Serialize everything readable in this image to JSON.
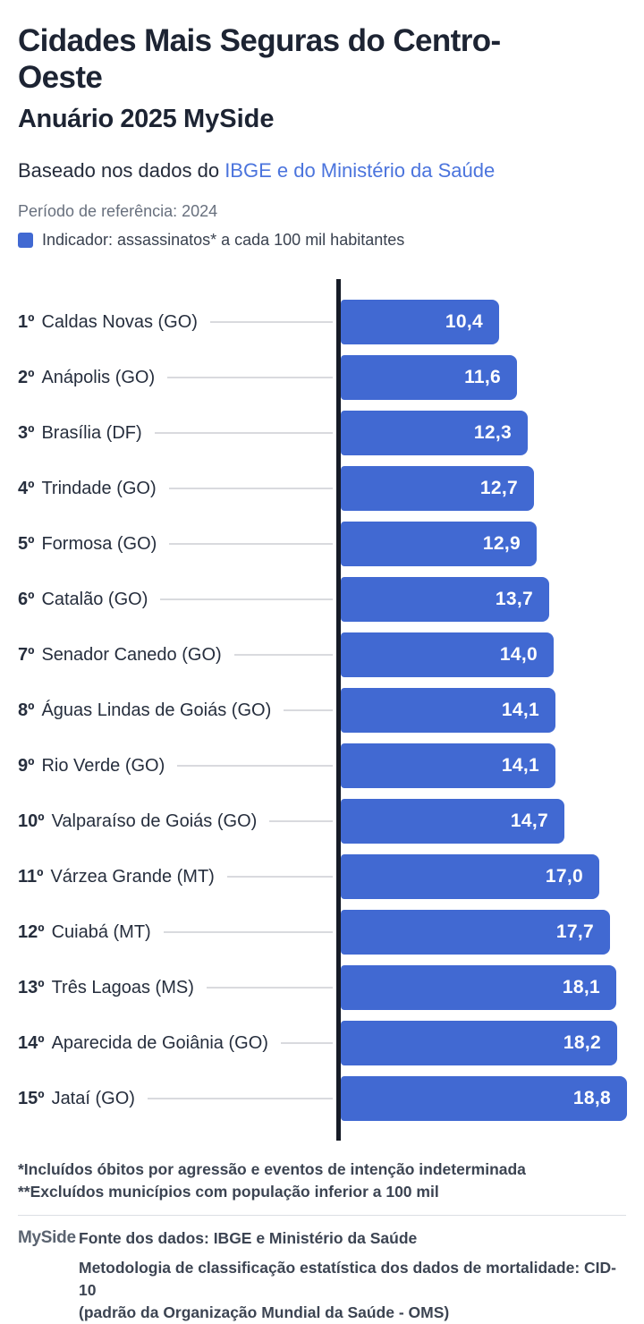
{
  "header": {
    "title": "Cidades Mais Seguras do Centro-Oeste",
    "subtitle_prefix": "Anuário 2025 ",
    "subtitle_brand": "MySide",
    "source_prefix": "Baseado nos dados do ",
    "source_link": "IBGE e do Ministério da Saúde",
    "period": "Período de referência: 2024",
    "legend_label": "Indicador: assassinatos* a cada 100 mil habitantes"
  },
  "colors": {
    "bar": "#4169d2",
    "link": "#4b74dd",
    "axis": "#161b26",
    "leader_line": "#d9dade",
    "title_text": "#1d2433"
  },
  "chart_data": {
    "type": "bar",
    "orientation": "horizontal",
    "title": "Cidades Mais Seguras do Centro-Oeste",
    "subtitle": "Anuário 2025 MySide",
    "indicator": "assassinatos* a cada 100 mil habitantes",
    "period": "2024",
    "xlim": [
      0,
      19
    ],
    "grid": false,
    "legend_position": "top",
    "categories": [
      "1º Caldas Novas (GO)",
      "2º Anápolis (GO)",
      "3º Brasília (DF)",
      "4º Trindade (GO)",
      "5º Formosa (GO)",
      "6º Catalão (GO)",
      "7º Senador Canedo (GO)",
      "8º Águas Lindas de Goiás (GO)",
      "9º Rio Verde (GO)",
      "10º Valparaíso de Goiás (GO)",
      "11º Várzea Grande (MT)",
      "12º Cuiabá (MT)",
      "13º Três Lagoas (MS)",
      "14º Aparecida de Goiânia (GO)",
      "15º Jataí (GO)"
    ],
    "values": [
      10.4,
      11.6,
      12.3,
      12.7,
      12.9,
      13.7,
      14.0,
      14.1,
      14.1,
      14.7,
      17.0,
      17.7,
      18.1,
      18.2,
      18.8
    ],
    "value_labels": [
      "10,4",
      "11,6",
      "12,3",
      "12,7",
      "12,9",
      "13,7",
      "14,0",
      "14,1",
      "14,1",
      "14,7",
      "17,0",
      "17,7",
      "18,1",
      "18,2",
      "18,8"
    ],
    "rows": [
      {
        "rank": "1º",
        "city": "Caldas Novas (GO)",
        "value": 10.4,
        "label": "10,4"
      },
      {
        "rank": "2º",
        "city": "Anápolis (GO)",
        "value": 11.6,
        "label": "11,6"
      },
      {
        "rank": "3º",
        "city": "Brasília (DF)",
        "value": 12.3,
        "label": "12,3"
      },
      {
        "rank": "4º",
        "city": "Trindade (GO)",
        "value": 12.7,
        "label": "12,7"
      },
      {
        "rank": "5º",
        "city": "Formosa (GO)",
        "value": 12.9,
        "label": "12,9"
      },
      {
        "rank": "6º",
        "city": "Catalão (GO)",
        "value": 13.7,
        "label": "13,7"
      },
      {
        "rank": "7º",
        "city": "Senador Canedo (GO)",
        "value": 14.0,
        "label": "14,0"
      },
      {
        "rank": "8º",
        "city": "Águas Lindas de Goiás (GO)",
        "value": 14.1,
        "label": "14,1"
      },
      {
        "rank": "9º",
        "city": "Rio Verde (GO)",
        "value": 14.1,
        "label": "14,1"
      },
      {
        "rank": "10º",
        "city": "Valparaíso de Goiás (GO)",
        "value": 14.7,
        "label": "14,7"
      },
      {
        "rank": "11º",
        "city": "Várzea Grande (MT)",
        "value": 17.0,
        "label": "17,0"
      },
      {
        "rank": "12º",
        "city": "Cuiabá (MT)",
        "value": 17.7,
        "label": "17,7"
      },
      {
        "rank": "13º",
        "city": "Três Lagoas (MS)",
        "value": 18.1,
        "label": "18,1"
      },
      {
        "rank": "14º",
        "city": "Aparecida de Goiânia (GO)",
        "value": 18.2,
        "label": "18,2"
      },
      {
        "rank": "15º",
        "city": "Jataí (GO)",
        "value": 18.8,
        "label": "18,8"
      }
    ]
  },
  "footnotes": {
    "line1": "*Incluídos óbitos por agressão e eventos de intenção indeterminada",
    "line2": "**Excluídos municípios com população inferior a 100 mil"
  },
  "footer": {
    "logo": "MySide",
    "source": "Fonte dos dados: IBGE e Ministério da Saúde",
    "methodology_line1": "Metodologia de classificação estatística dos dados de mortalidade: CID-10",
    "methodology_line2": "(padrão da Organização Mundial da Saúde - OMS)"
  }
}
